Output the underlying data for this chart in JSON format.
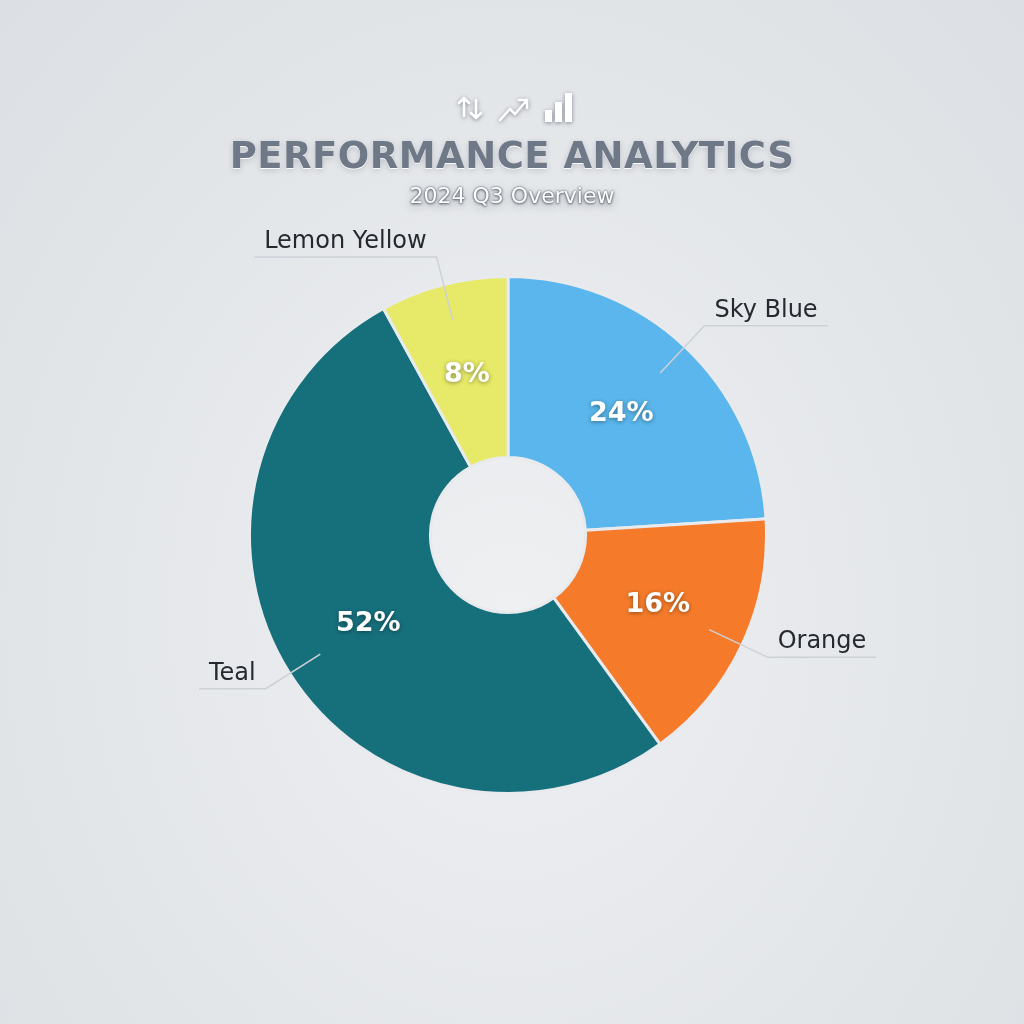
{
  "chart_data": {
    "type": "donut",
    "title": "PERFORMANCE ANALYTICS",
    "subtitle": "2024 Q3 Overview",
    "categories": [
      "Sky Blue",
      "Orange",
      "Teal",
      "Lemon Yellow"
    ],
    "values": [
      24,
      16,
      52,
      8
    ],
    "colors": [
      "#5ab6ec",
      "#f57b2a",
      "#16707c",
      "#e6ea68"
    ],
    "value_labels": [
      "24%",
      "16%",
      "52%",
      "8%"
    ]
  }
}
